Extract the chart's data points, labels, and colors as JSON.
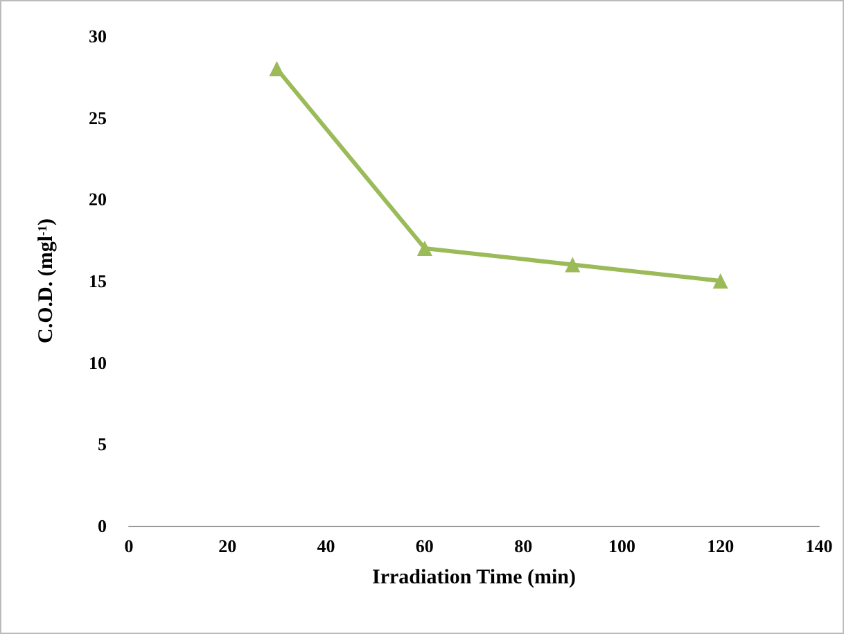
{
  "chart_data": {
    "type": "line",
    "xlabel": "Irradiation Time (min)",
    "ylabel": "C.O.D. (mgl$^{-1}$)",
    "x": [
      30,
      60,
      90,
      120
    ],
    "series": [
      {
        "color": "#9bbb59",
        "values": [
          28,
          17,
          16,
          15
        ]
      }
    ],
    "xlim": [
      0,
      140
    ],
    "xticks": [
      0,
      20,
      40,
      60,
      80,
      100,
      120,
      140
    ],
    "ylim": [
      0,
      30
    ],
    "yticks": [
      0,
      5,
      10,
      15,
      20,
      25,
      30
    ],
    "grid": false,
    "marker": "triangle",
    "line_style": "solid"
  }
}
